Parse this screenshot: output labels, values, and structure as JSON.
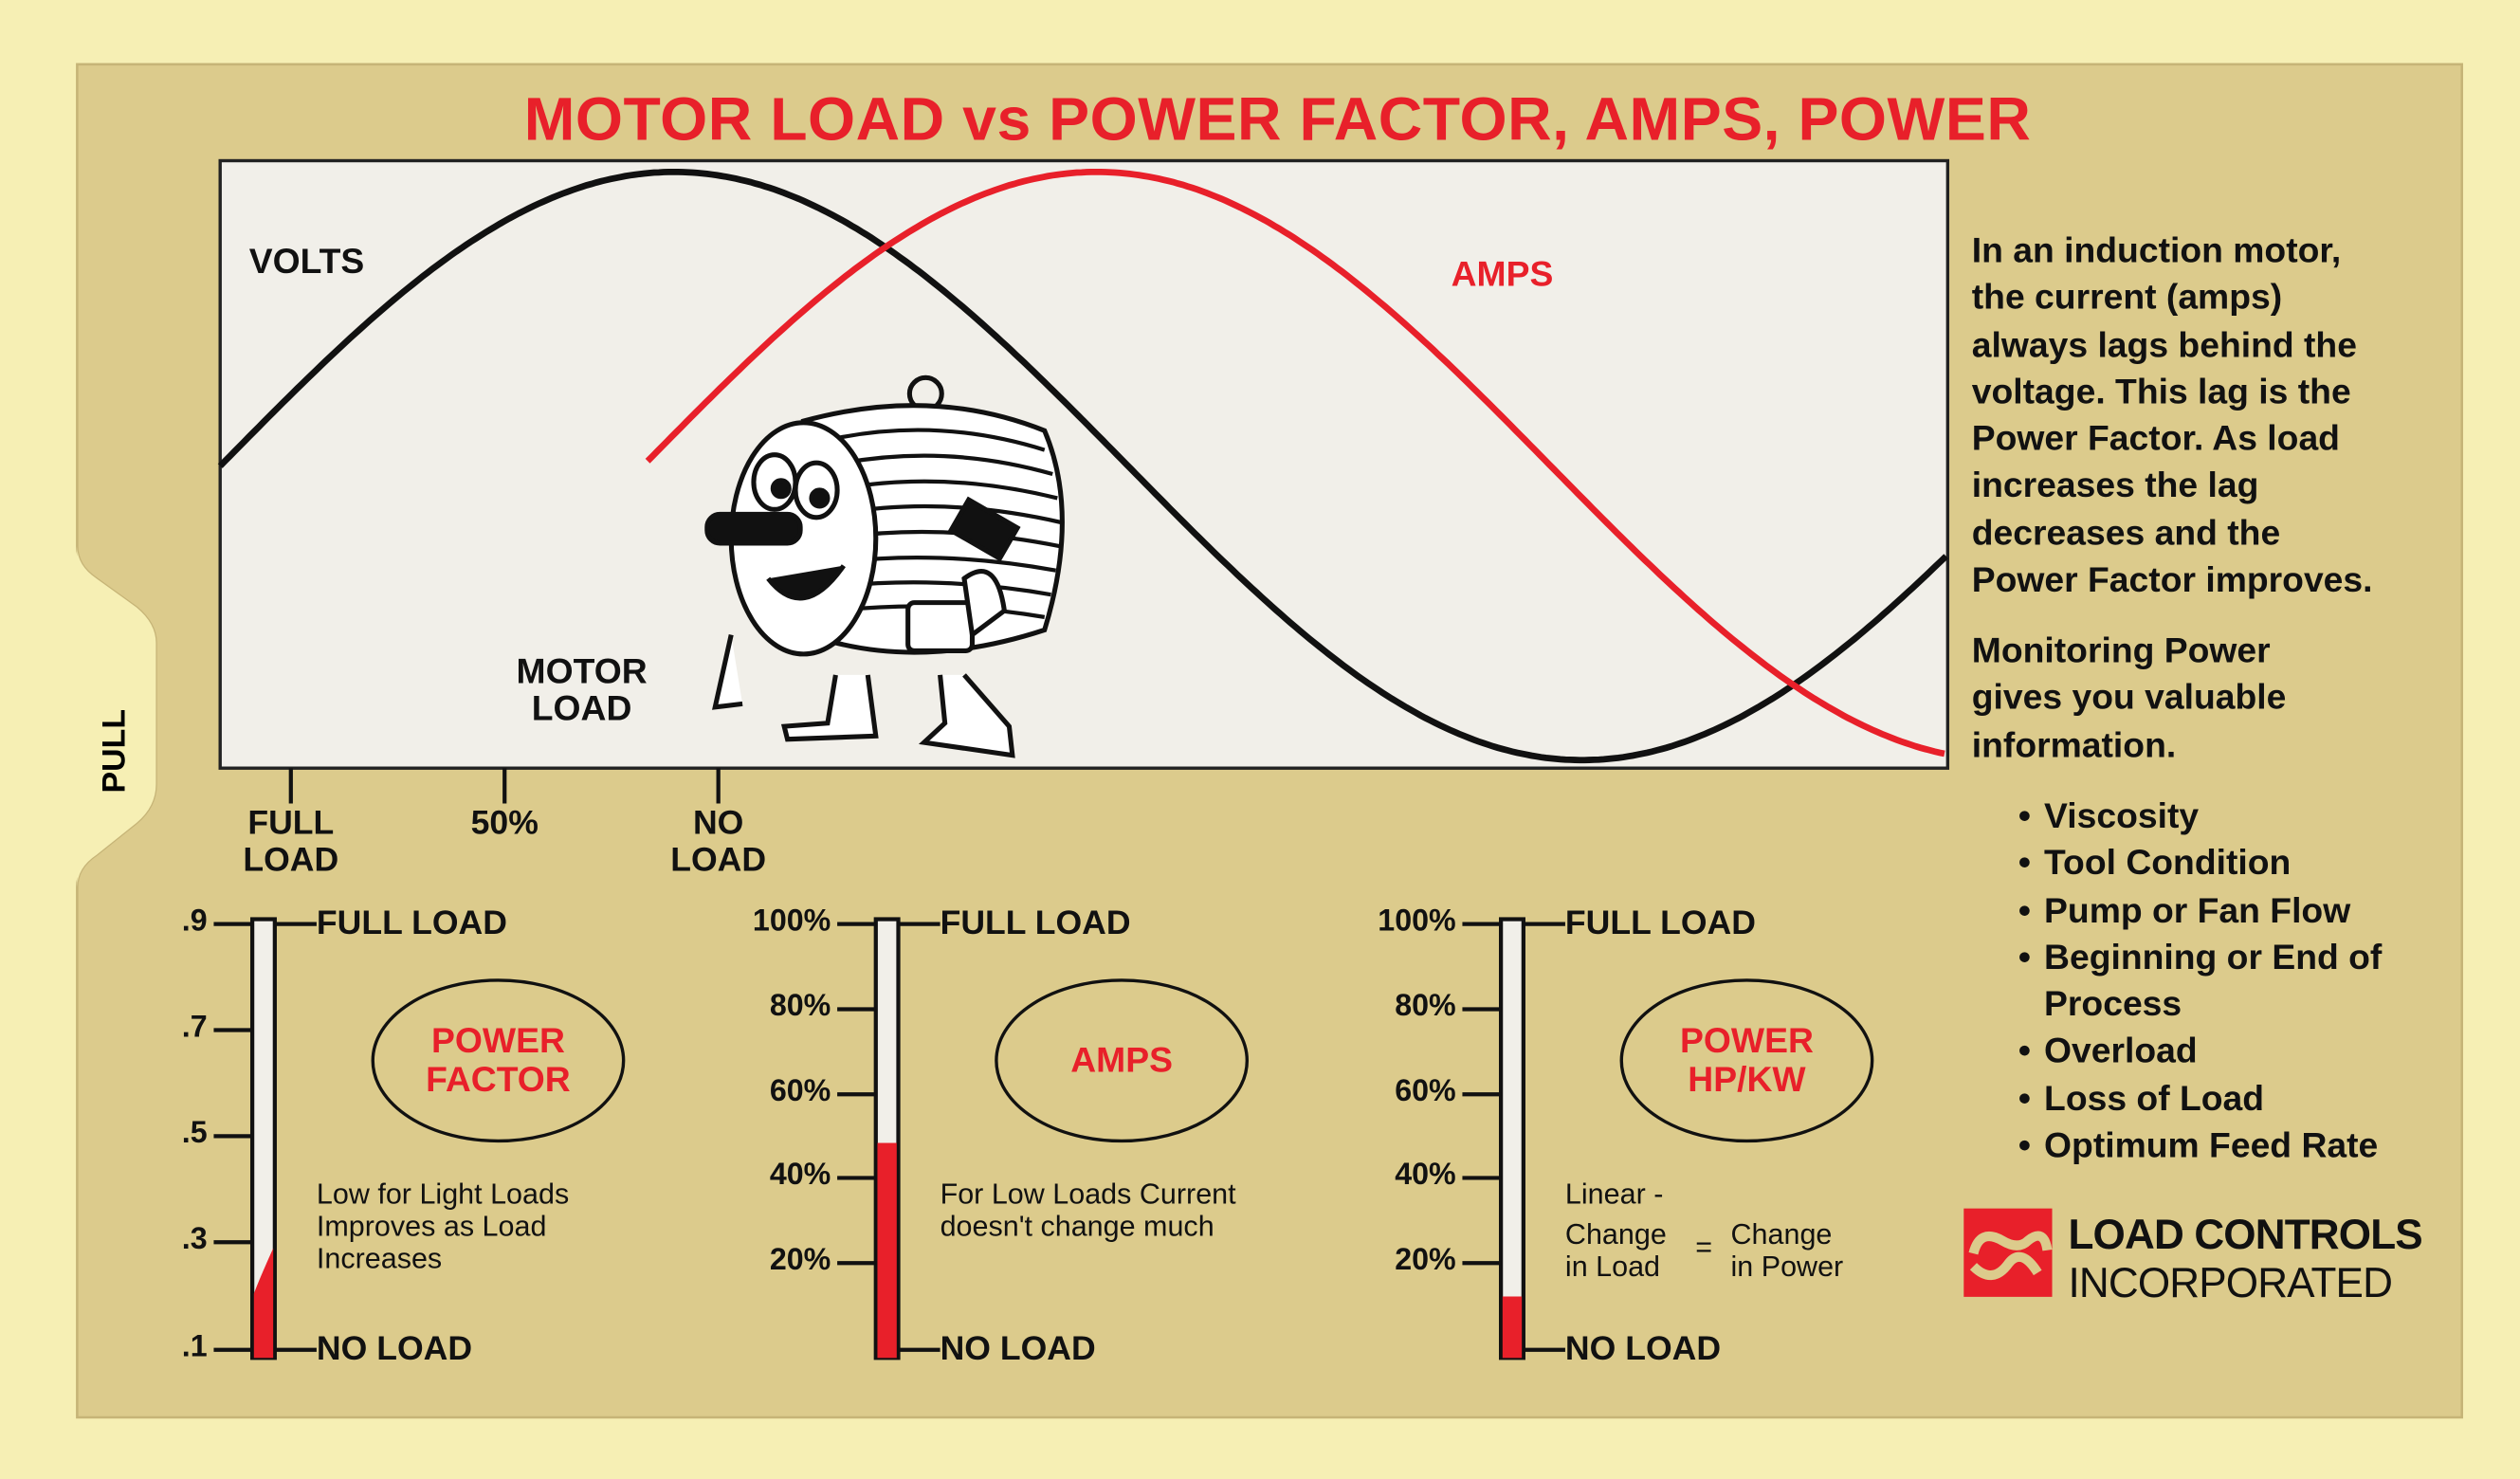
{
  "title": "MOTOR LOAD vs POWER FACTOR, AMPS, POWER",
  "pull_tab": "PULL",
  "colors": {
    "accent_red": "#e8202a",
    "card": "#dccb8c",
    "background": "#f6efb4",
    "plot_bg": "#f1efe9"
  },
  "waveform": {
    "volts_label": "VOLTS",
    "amps_label": "AMPS",
    "motor_load_label": [
      "MOTOR",
      "LOAD"
    ],
    "load_scale": [
      {
        "lines": [
          "FULL",
          "LOAD"
        ]
      },
      {
        "lines": [
          "50%"
        ]
      },
      {
        "lines": [
          "NO",
          "LOAD"
        ]
      }
    ]
  },
  "gauges": [
    {
      "name": "POWER FACTOR",
      "name_lines": [
        "POWER",
        "FACTOR"
      ],
      "ticks": [
        ".9",
        ".7",
        ".5",
        ".3",
        ".1"
      ],
      "top_label": "FULL LOAD",
      "bottom_label": "NO LOAD",
      "fill_fraction": 0.25,
      "note_lines": [
        "Low for Light Loads",
        "Improves as Load",
        "Increases"
      ]
    },
    {
      "name": "AMPS",
      "name_lines": [
        "AMPS"
      ],
      "ticks": [
        "100%",
        "80%",
        "60%",
        "40%",
        "20%"
      ],
      "top_label": "FULL LOAD",
      "bottom_label": "NO LOAD",
      "fill_fraction": 0.49,
      "note_lines": [
        "For Low Loads Current",
        "doesn't change much"
      ]
    },
    {
      "name": "POWER HP/KW",
      "name_lines": [
        "POWER",
        "HP/KW"
      ],
      "ticks": [
        "100%",
        "80%",
        "60%",
        "40%",
        "20%"
      ],
      "top_label": "FULL LOAD",
      "bottom_label": "NO LOAD",
      "fill_fraction": 0.14,
      "note_lines": [
        "Linear -"
      ],
      "equation": {
        "left": [
          "Change",
          "in Load"
        ],
        "op": "=",
        "right": [
          "Change",
          "in Power"
        ]
      }
    }
  ],
  "explanation": {
    "paragraph1": [
      "In an induction motor,",
      "the current (amps)",
      "always lags behind the",
      "voltage. This lag is the",
      "Power Factor. As load",
      "increases the lag",
      "decreases and the",
      "Power Factor improves."
    ],
    "paragraph2": [
      "Monitoring Power",
      "gives you valuable",
      "information."
    ],
    "bullets": [
      "Viscosity",
      "Tool Condition",
      "Pump or Fan Flow",
      "Beginning or End of Process",
      "Overload",
      "Loss of Load",
      "Optimum Feed Rate"
    ]
  },
  "logo": {
    "line1": "LOAD CONTROLS",
    "line2": "INCORPORATED"
  }
}
